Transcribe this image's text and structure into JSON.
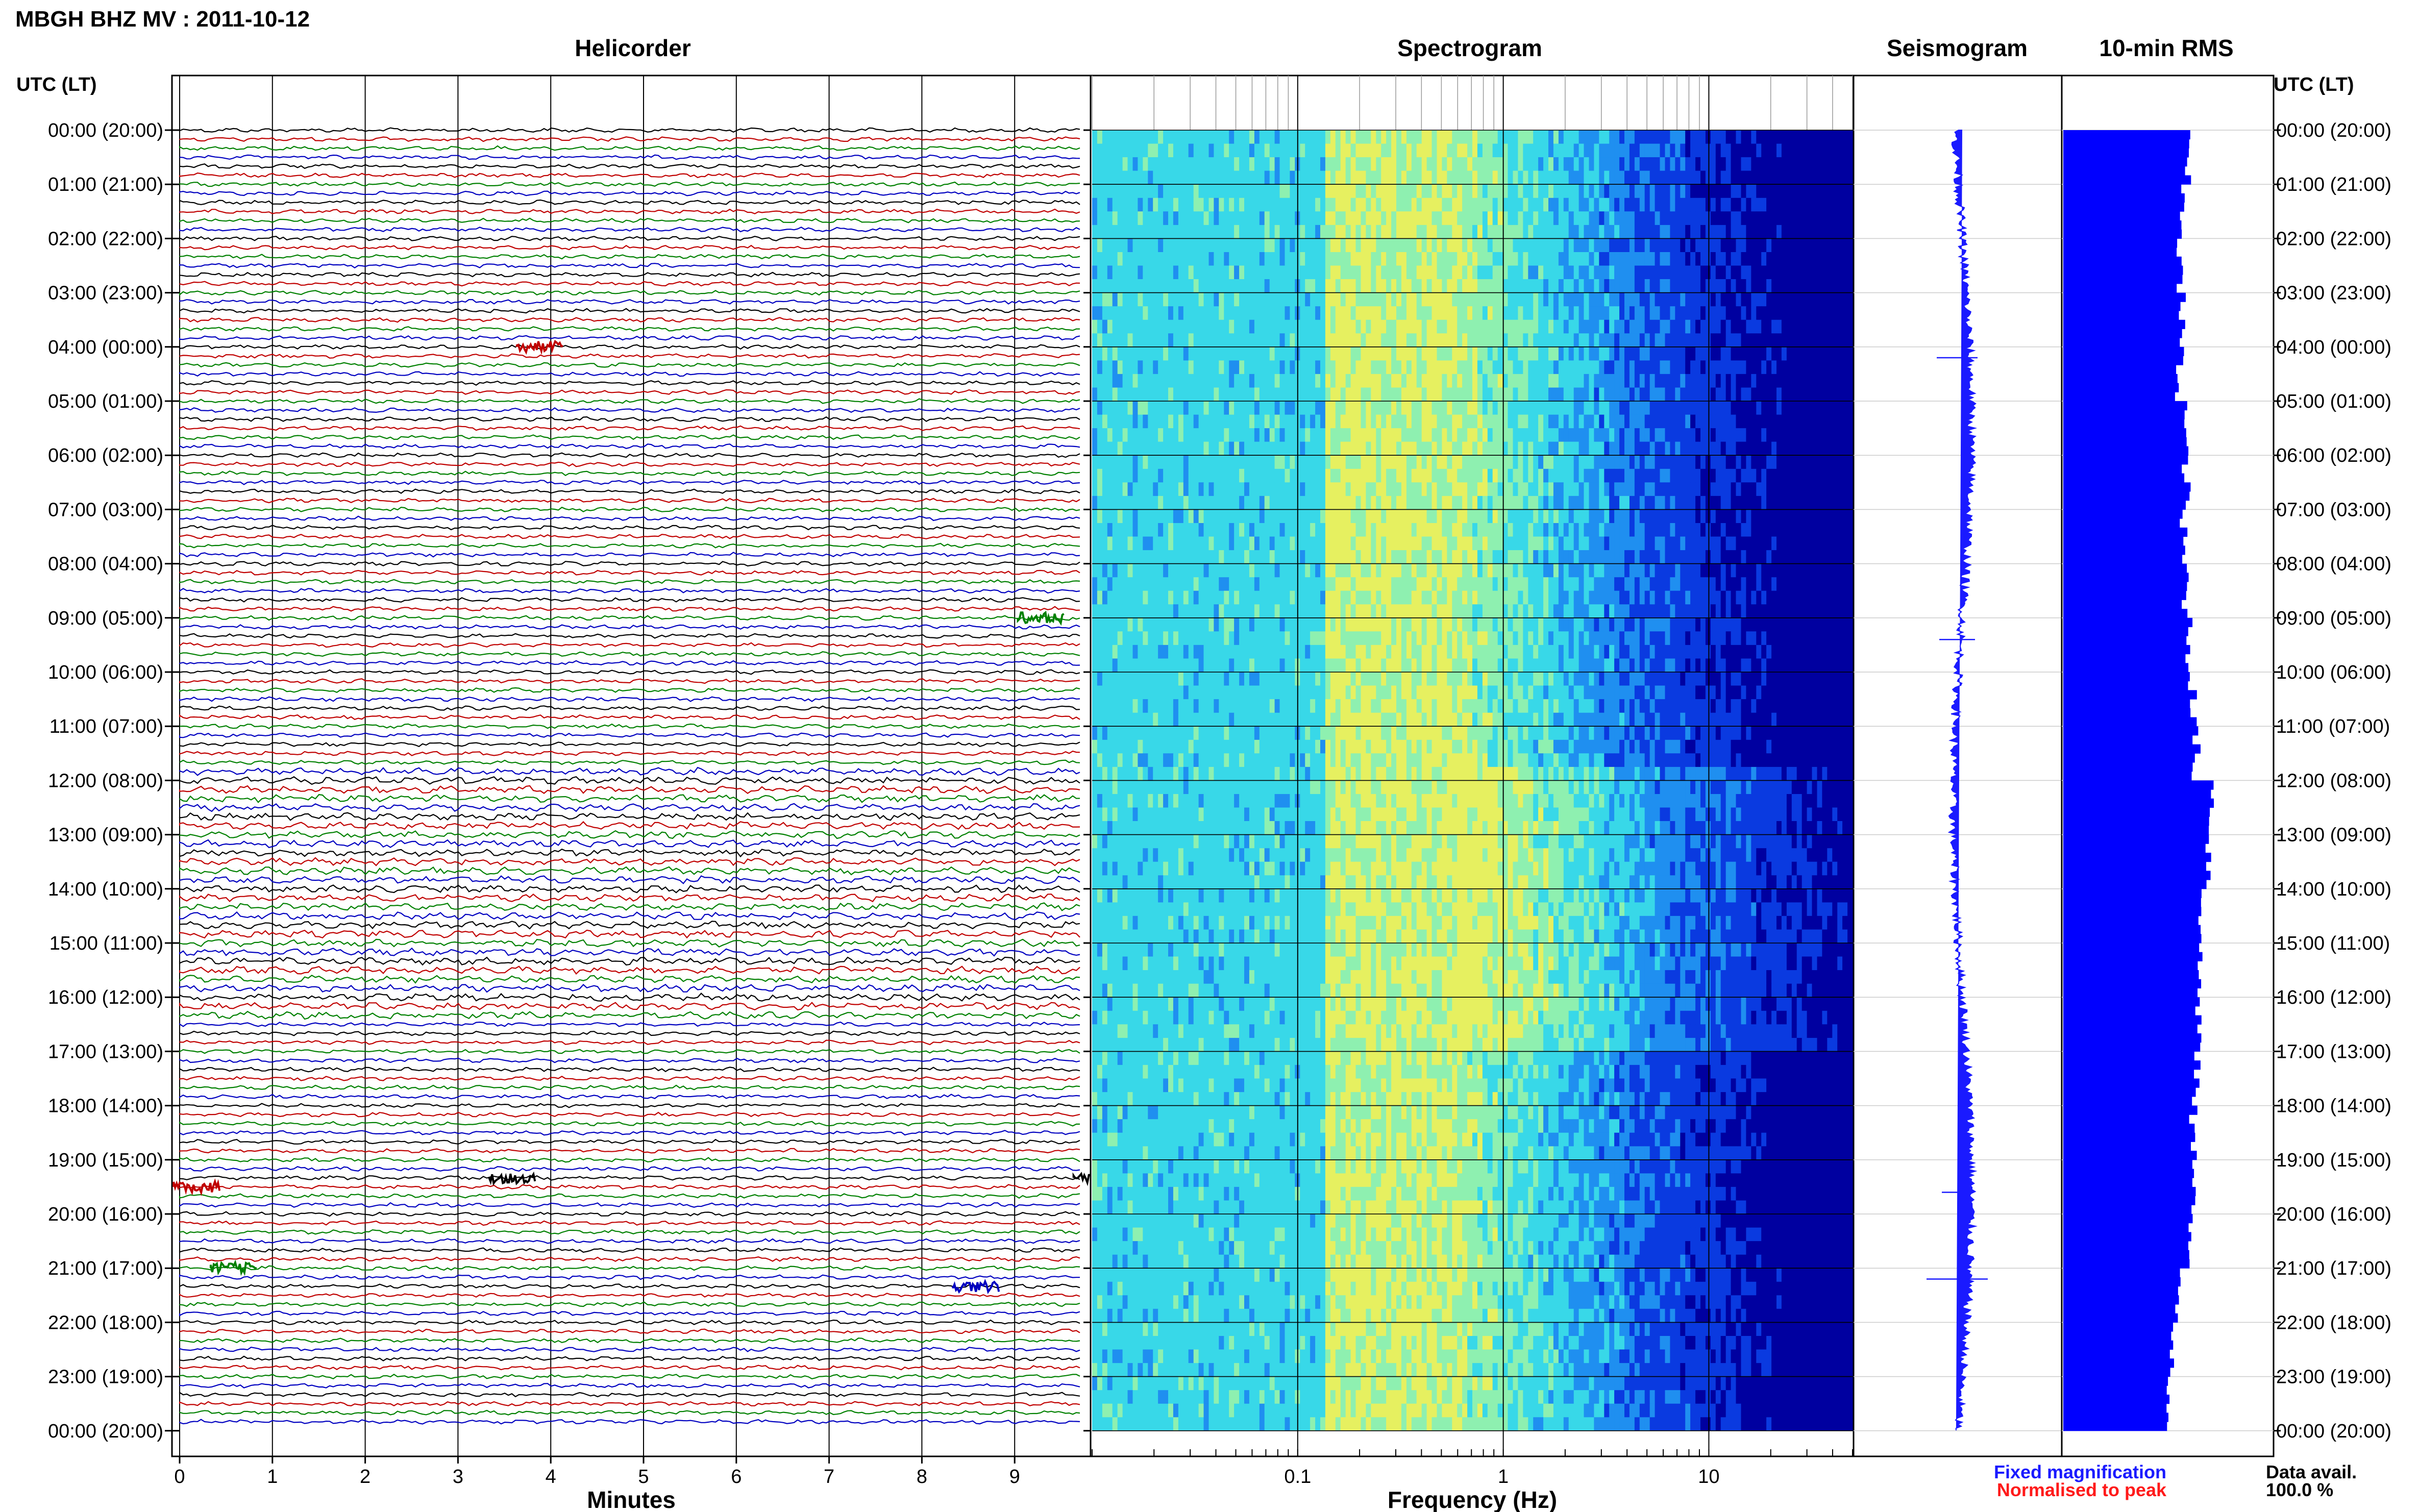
{
  "header": {
    "title": "MBGH BHZ MV : 2011-10-12"
  },
  "panels": {
    "helicorder": "Helicorder",
    "spectrogram": "Spectrogram",
    "seismogram": "Seismogram",
    "rms": "10-min RMS"
  },
  "axes": {
    "left_header": "UTC (LT)",
    "right_header": "UTC (LT)",
    "helicorder_xlabel": "Minutes",
    "spectrogram_xlabel": "Frequency (Hz)"
  },
  "legend": {
    "fixed": "Fixed magnification",
    "normalised": "Normalised to peak",
    "fixed_color": "#1a1aff",
    "normalised_color": "#ff1a1a"
  },
  "data_avail": {
    "label": "Data avail.",
    "value": "100.0 %"
  },
  "trace_colors": [
    "#000000",
    "#c00000",
    "#008000",
    "#0000c0"
  ],
  "chart_data": [
    {
      "type": "line",
      "title": "Helicorder",
      "xlabel": "Minutes",
      "ylabel": "UTC (LT)",
      "xlim": [
        0,
        10
      ],
      "x_ticks": [
        "0",
        "1",
        "2",
        "3",
        "4",
        "5",
        "6",
        "7",
        "8",
        "9"
      ],
      "y_tick_labels": [
        "00:00 (20:00)",
        "01:00 (21:00)",
        "02:00 (22:00)",
        "03:00 (23:00)",
        "04:00 (00:00)",
        "05:00 (01:00)",
        "06:00 (02:00)",
        "07:00 (03:00)",
        "08:00 (04:00)",
        "09:00 (05:00)",
        "10:00 (06:00)",
        "11:00 (07:00)",
        "12:00 (08:00)",
        "13:00 (09:00)",
        "14:00 (10:00)",
        "15:00 (11:00)",
        "16:00 (12:00)",
        "17:00 (13:00)",
        "18:00 (14:00)",
        "19:00 (15:00)",
        "20:00 (16:00)",
        "21:00 (17:00)",
        "22:00 (18:00)",
        "23:00 (19:00)",
        "00:00 (20:00)"
      ],
      "line_count": 144,
      "line_minutes": 10,
      "events": [
        {
          "row": 24,
          "minute": 3.8,
          "color": "#c00000"
        },
        {
          "row": 54,
          "minute": 9.2,
          "color": "#008000"
        },
        {
          "row": 117,
          "minute": 0.1,
          "color": "#c00000"
        },
        {
          "row": 116,
          "minute": 3.5,
          "color": "#000000"
        },
        {
          "row": 116,
          "minute": 9.8,
          "color": "#000000"
        },
        {
          "row": 126,
          "minute": 0.5,
          "color": "#008000"
        },
        {
          "row": 128,
          "minute": 8.5,
          "color": "#0000c0"
        }
      ],
      "grid": true
    },
    {
      "type": "heatmap",
      "title": "Spectrogram",
      "xlabel": "Frequency (Hz)",
      "x_scale": "log",
      "xlim": [
        0.01,
        50
      ],
      "x_tick_labels": [
        "0.1",
        "1",
        "10"
      ],
      "colormap": [
        "#0000a0",
        "#0a3ae0",
        "#1f8ff0",
        "#38d8e8",
        "#8ef0b0",
        "#e6f060"
      ]
    },
    {
      "type": "line",
      "title": "Seismogram",
      "legend": [
        "Fixed magnification",
        "Normalised to peak"
      ]
    },
    {
      "type": "bar",
      "title": "10-min RMS",
      "orientation": "horizontal",
      "categories": [
        "00:00",
        "01:00",
        "02:00",
        "03:00",
        "04:00",
        "05:00",
        "06:00",
        "07:00",
        "08:00",
        "09:00",
        "10:00",
        "11:00",
        "12:00",
        "13:00",
        "14:00",
        "15:00",
        "16:00",
        "17:00",
        "18:00",
        "19:00",
        "20:00",
        "21:00",
        "22:00",
        "23:00"
      ],
      "values": [
        0.76,
        0.74,
        0.72,
        0.73,
        0.72,
        0.75,
        0.76,
        0.74,
        0.76,
        0.78,
        0.8,
        0.82,
        0.92,
        0.9,
        0.86,
        0.84,
        0.84,
        0.82,
        0.8,
        0.82,
        0.78,
        0.7,
        0.68,
        0.66
      ],
      "xlim": [
        0,
        1.3
      ]
    }
  ]
}
